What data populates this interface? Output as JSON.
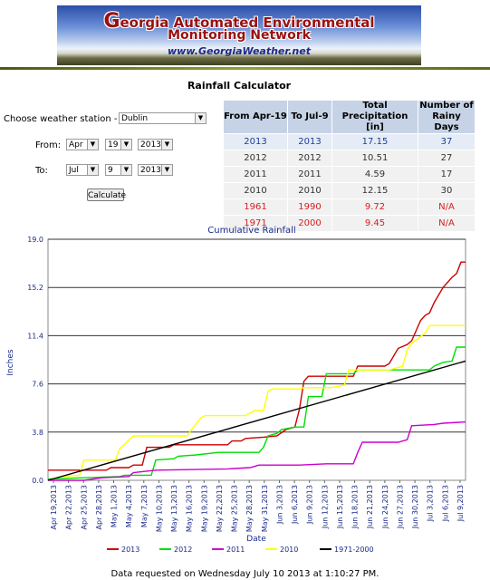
{
  "banner": {
    "line1_first": "G",
    "line1_rest": "eorgia Automated Environmental",
    "line2": "Monitoring Network",
    "url": "www.GeorgiaWeather.net"
  },
  "page_title": "Rainfall Calculator",
  "form": {
    "station_label": "Choose weather station -",
    "station_value": "Dublin",
    "from_label": "From:",
    "from_month": "Apr",
    "from_day": "19",
    "from_year": "2013",
    "to_label": "To:",
    "to_month": "Jul",
    "to_day": "9",
    "to_year": "2013",
    "calculate_label": "Calculate"
  },
  "table": {
    "headers": [
      "From Apr-19",
      "To Jul-9",
      "Total Precipitation [in]",
      "Number of Rainy Days"
    ],
    "rows": [
      {
        "from": "2013",
        "to": "2013",
        "total": "17.15",
        "days": "37"
      },
      {
        "from": "2012",
        "to": "2012",
        "total": "10.51",
        "days": "27"
      },
      {
        "from": "2011",
        "to": "2011",
        "total": "4.59",
        "days": "17"
      },
      {
        "from": "2010",
        "to": "2010",
        "total": "12.15",
        "days": "30"
      },
      {
        "from": "1961",
        "to": "1990",
        "total": "9.72",
        "days": "N/A"
      },
      {
        "from": "1971",
        "to": "2000",
        "total": "9.45",
        "days": "N/A"
      }
    ]
  },
  "colors": {
    "s2013": "#cc0000",
    "s2012": "#00dd00",
    "s2011": "#cc00cc",
    "s2010": "#ffff00",
    "normal": "#000000",
    "header_bg": "#c6d3e6",
    "current_text": "#1b3e9a",
    "normal_text": "#d42020"
  },
  "chart_data": {
    "type": "line",
    "title": "Cumulative Rainfall",
    "xlabel": "Date",
    "ylabel": "Inches",
    "ylim": [
      0,
      19.0
    ],
    "y_ticks": [
      "0.0",
      "3.8",
      "7.6",
      "11.4",
      "15.2",
      "19.0"
    ],
    "x_ticks": [
      "Apr 19,2013",
      "Apr 22,2013",
      "Apr 25,2013",
      "Apr 28,2013",
      "May 1,2013",
      "May 4,2013",
      "May 7,2013",
      "May 10,2013",
      "May 13,2013",
      "May 16,2013",
      "May 19,2013",
      "May 22,2013",
      "May 25,2013",
      "May 28,2013",
      "May 31,2013",
      "Jun 3,2013",
      "Jun 6,2013",
      "Jun 9,2013",
      "Jun 12,2013",
      "Jun 15,2013",
      "Jun 18,2013",
      "Jun 21,2013",
      "Jun 24,2013",
      "Jun 27,2013",
      "Jun 30,2013",
      "Jul 3,2013",
      "Jul 6,2013",
      "Jul 9,2013"
    ],
    "x_days": 81,
    "series": [
      {
        "name": "2013",
        "color": "#cc0000",
        "points": [
          [
            0,
            0.8
          ],
          [
            13,
            0.8
          ],
          [
            14,
            1.0
          ],
          [
            18,
            1.0
          ],
          [
            19,
            1.2
          ],
          [
            21,
            1.2
          ],
          [
            22,
            2.6
          ],
          [
            27,
            2.6
          ],
          [
            28,
            2.8
          ],
          [
            40,
            2.8
          ],
          [
            41,
            3.1
          ],
          [
            43,
            3.1
          ],
          [
            44,
            3.3
          ],
          [
            48,
            3.4
          ],
          [
            51,
            3.5
          ],
          [
            53,
            4.0
          ],
          [
            55,
            4.2
          ],
          [
            56,
            5.6
          ],
          [
            57,
            7.8
          ],
          [
            58,
            8.2
          ],
          [
            68,
            8.2
          ],
          [
            69,
            9.0
          ],
          [
            75,
            9.0
          ],
          [
            76,
            9.2
          ],
          [
            78,
            10.4
          ],
          [
            80,
            10.7
          ],
          [
            81,
            11.0
          ],
          [
            83,
            12.6
          ],
          [
            84,
            13.0
          ],
          [
            85,
            13.2
          ],
          [
            86,
            14.0
          ],
          [
            88,
            15.2
          ],
          [
            90,
            16.0
          ],
          [
            91,
            16.3
          ],
          [
            92,
            17.2
          ],
          [
            93,
            17.2
          ]
        ]
      },
      {
        "name": "2012",
        "color": "#00dd00",
        "points": [
          [
            0,
            0.1
          ],
          [
            16,
            0.3
          ],
          [
            17,
            0.4
          ],
          [
            23,
            0.4
          ],
          [
            24,
            1.6
          ],
          [
            28,
            1.7
          ],
          [
            29,
            1.9
          ],
          [
            33,
            2.0
          ],
          [
            38,
            2.2
          ],
          [
            47,
            2.2
          ],
          [
            48,
            2.6
          ],
          [
            49,
            3.5
          ],
          [
            51,
            3.7
          ],
          [
            52,
            4.0
          ],
          [
            55,
            4.2
          ],
          [
            57,
            4.2
          ],
          [
            58,
            6.6
          ],
          [
            61,
            6.6
          ],
          [
            62,
            8.4
          ],
          [
            68,
            8.4
          ],
          [
            69,
            8.7
          ],
          [
            85,
            8.7
          ],
          [
            86,
            9.0
          ],
          [
            88,
            9.3
          ],
          [
            90,
            9.4
          ],
          [
            91,
            10.5
          ],
          [
            93,
            10.5
          ]
        ]
      },
      {
        "name": "2011",
        "color": "#cc00cc",
        "points": [
          [
            0,
            0.0
          ],
          [
            8,
            0.0
          ],
          [
            12,
            0.2
          ],
          [
            18,
            0.3
          ],
          [
            19,
            0.6
          ],
          [
            24,
            0.8
          ],
          [
            40,
            0.9
          ],
          [
            45,
            1.0
          ],
          [
            47,
            1.2
          ],
          [
            56,
            1.2
          ],
          [
            62,
            1.3
          ],
          [
            68,
            1.3
          ],
          [
            69,
            2.2
          ],
          [
            70,
            3.0
          ],
          [
            78,
            3.0
          ],
          [
            80,
            3.2
          ],
          [
            81,
            4.3
          ],
          [
            86,
            4.4
          ],
          [
            88,
            4.5
          ],
          [
            93,
            4.6
          ]
        ]
      },
      {
        "name": "2010",
        "color": "#ffff00",
        "points": [
          [
            0,
            0.0
          ],
          [
            3,
            0.3
          ],
          [
            7,
            0.4
          ],
          [
            8,
            1.6
          ],
          [
            15,
            1.6
          ],
          [
            16,
            2.5
          ],
          [
            19,
            3.5
          ],
          [
            31,
            3.5
          ],
          [
            32,
            4.0
          ],
          [
            34,
            4.9
          ],
          [
            35,
            5.1
          ],
          [
            44,
            5.1
          ],
          [
            46,
            5.5
          ],
          [
            48,
            5.5
          ],
          [
            49,
            7.0
          ],
          [
            50,
            7.2
          ],
          [
            56,
            7.2
          ],
          [
            57,
            7.3
          ],
          [
            63,
            7.3
          ],
          [
            66,
            7.5
          ],
          [
            67,
            8.7
          ],
          [
            76,
            8.7
          ],
          [
            79,
            9.0
          ],
          [
            80,
            10.3
          ],
          [
            81,
            10.8
          ],
          [
            84,
            11.6
          ],
          [
            85,
            12.2
          ],
          [
            93,
            12.2
          ]
        ]
      },
      {
        "name": "1971-2000",
        "color": "#000000",
        "points": [
          [
            0,
            0.0
          ],
          [
            93,
            9.4
          ]
        ]
      }
    ]
  },
  "footer": "Data requested on Wednesday July 10 2013 at 1:10:27 PM."
}
